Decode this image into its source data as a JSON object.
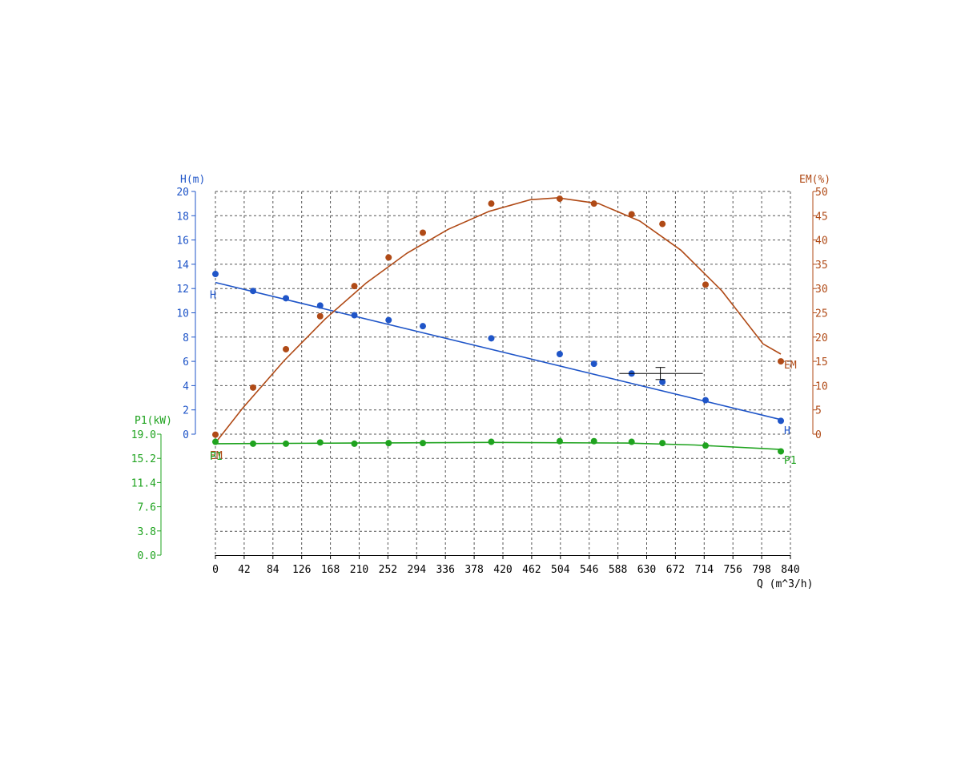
{
  "colors": {
    "H": "#1f55c8",
    "EM": "#b04a16",
    "P1": "#1fa31f",
    "axis": "#000000",
    "grid": "#555555"
  },
  "chart_data": {
    "type": "scatter",
    "xlabel": "Q (m^3/h)",
    "x_ticks": [
      "0",
      "42",
      "84",
      "126",
      "168",
      "210",
      "252",
      "294",
      "336",
      "378",
      "420",
      "462",
      "504",
      "546",
      "588",
      "630",
      "672",
      "714",
      "756",
      "798",
      "840"
    ],
    "xlim": [
      0,
      840
    ],
    "axes": {
      "H": {
        "label": "H(m)",
        "ylim": [
          0,
          20
        ],
        "ticks": [
          "0",
          "2",
          "4",
          "6",
          "8",
          "10",
          "12",
          "14",
          "16",
          "18",
          "20"
        ],
        "side": "left"
      },
      "EM": {
        "label": "EM(%)",
        "ylim": [
          0,
          50
        ],
        "ticks": [
          "0",
          "5",
          "10",
          "15",
          "20",
          "25",
          "30",
          "35",
          "40",
          "45",
          "50"
        ],
        "side": "right"
      },
      "P1": {
        "label": "P1(kW)",
        "ylim": [
          0,
          19
        ],
        "ticks": [
          "0.0",
          "3.8",
          "7.6",
          "11.4",
          "15.2",
          "19.0"
        ],
        "side": "left-lower"
      }
    },
    "series": [
      {
        "key": "H",
        "name": "H",
        "axis": "H",
        "points": [
          [
            0,
            13.2
          ],
          [
            55,
            11.8
          ],
          [
            103,
            11.2
          ],
          [
            153,
            10.6
          ],
          [
            203,
            9.8
          ],
          [
            253,
            9.4
          ],
          [
            303,
            8.9
          ],
          [
            403,
            7.9
          ],
          [
            503,
            6.6
          ],
          [
            553,
            5.8
          ],
          [
            608,
            5.0
          ],
          [
            653,
            4.3
          ],
          [
            716,
            2.8
          ],
          [
            826,
            1.1
          ]
        ],
        "fit": [
          [
            0,
            12.5
          ],
          [
            826,
            1.2
          ]
        ],
        "end_label_left": "H",
        "end_label_right": "H"
      },
      {
        "key": "EM",
        "name": "EM",
        "axis": "EM",
        "points": [
          [
            0,
            -0.1
          ],
          [
            55,
            9.6
          ],
          [
            103,
            17.5
          ],
          [
            153,
            24.3
          ],
          [
            203,
            30.5
          ],
          [
            253,
            36.4
          ],
          [
            303,
            41.5
          ],
          [
            403,
            47.5
          ],
          [
            503,
            48.5
          ],
          [
            553,
            47.5
          ],
          [
            608,
            45.3
          ],
          [
            653,
            43.3
          ],
          [
            716,
            30.8
          ],
          [
            826,
            15.0
          ]
        ],
        "fit": [
          [
            0,
            -1.8
          ],
          [
            40,
            5.4
          ],
          [
            100,
            15.1
          ],
          [
            160,
            23.7
          ],
          [
            220,
            31.1
          ],
          [
            280,
            37.3
          ],
          [
            340,
            42.2
          ],
          [
            400,
            45.9
          ],
          [
            460,
            48.3
          ],
          [
            500,
            48.7
          ],
          [
            560,
            47.5
          ],
          [
            620,
            43.9
          ],
          [
            680,
            37.9
          ],
          [
            740,
            29.5
          ],
          [
            800,
            18.6
          ],
          [
            826,
            16.5
          ]
        ],
        "end_label_left": "EM",
        "end_label_right": "EM"
      },
      {
        "key": "P1",
        "name": "P1",
        "axis": "P1",
        "points": [
          [
            0,
            17.8
          ],
          [
            55,
            17.5
          ],
          [
            103,
            17.5
          ],
          [
            153,
            17.7
          ],
          [
            203,
            17.5
          ],
          [
            253,
            17.6
          ],
          [
            303,
            17.6
          ],
          [
            403,
            17.8
          ],
          [
            503,
            17.9
          ],
          [
            553,
            17.9
          ],
          [
            608,
            17.8
          ],
          [
            653,
            17.6
          ],
          [
            716,
            17.2
          ],
          [
            826,
            16.3
          ]
        ],
        "fit": [
          [
            0,
            17.5
          ],
          [
            200,
            17.6
          ],
          [
            400,
            17.7
          ],
          [
            600,
            17.6
          ],
          [
            700,
            17.3
          ],
          [
            826,
            16.6
          ]
        ],
        "end_label_left": "P1",
        "end_label_right": "P1"
      }
    ],
    "duty_point": {
      "x": [
        590,
        712
      ],
      "y_H": 5.0,
      "bar_x": 650,
      "bar_y": [
        4.5,
        5.5
      ]
    }
  }
}
